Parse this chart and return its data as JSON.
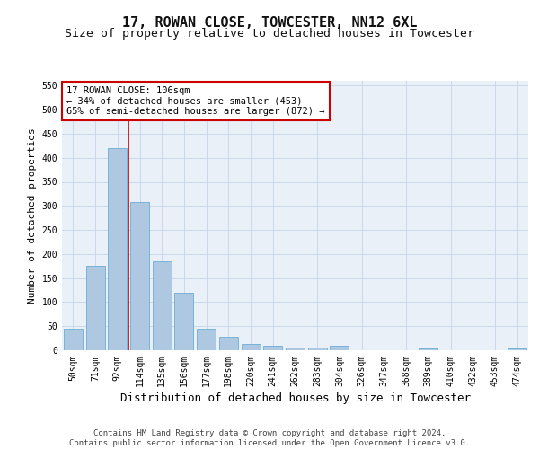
{
  "title": "17, ROWAN CLOSE, TOWCESTER, NN12 6XL",
  "subtitle": "Size of property relative to detached houses in Towcester",
  "xlabel": "Distribution of detached houses by size in Towcester",
  "ylabel": "Number of detached properties",
  "categories": [
    "50sqm",
    "71sqm",
    "92sqm",
    "114sqm",
    "135sqm",
    "156sqm",
    "177sqm",
    "198sqm",
    "220sqm",
    "241sqm",
    "262sqm",
    "283sqm",
    "304sqm",
    "326sqm",
    "347sqm",
    "368sqm",
    "389sqm",
    "410sqm",
    "432sqm",
    "453sqm",
    "474sqm"
  ],
  "values": [
    45,
    175,
    420,
    308,
    185,
    120,
    45,
    28,
    13,
    10,
    5,
    5,
    10,
    0,
    0,
    0,
    3,
    0,
    0,
    0,
    3
  ],
  "bar_color": "#adc8e0",
  "bar_edgecolor": "#6baed6",
  "grid_color": "#c8d8ec",
  "background_color": "#eaf0f8",
  "vline_color": "#cc0000",
  "vline_index": 2.5,
  "annotation_text": "17 ROWAN CLOSE: 106sqm\n← 34% of detached houses are smaller (453)\n65% of semi-detached houses are larger (872) →",
  "annotation_box_edgecolor": "#cc0000",
  "ylim": [
    0,
    560
  ],
  "yticks": [
    0,
    50,
    100,
    150,
    200,
    250,
    300,
    350,
    400,
    450,
    500,
    550
  ],
  "footer_line1": "Contains HM Land Registry data © Crown copyright and database right 2024.",
  "footer_line2": "Contains public sector information licensed under the Open Government Licence v3.0.",
  "title_fontsize": 11,
  "subtitle_fontsize": 9.5,
  "xlabel_fontsize": 9,
  "ylabel_fontsize": 8,
  "tick_fontsize": 7,
  "annotation_fontsize": 7.5,
  "footer_fontsize": 6.5
}
